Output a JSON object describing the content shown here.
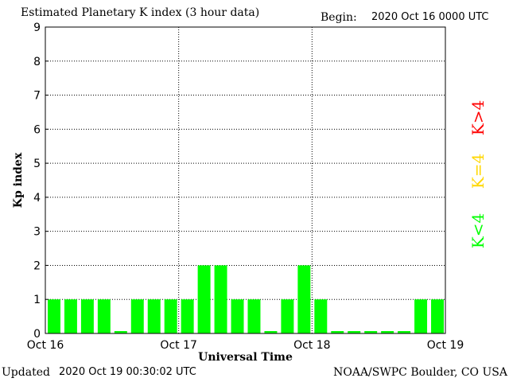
{
  "header": {
    "title": "Estimated Planetary K index (3 hour data)",
    "begin_label": "Begin:",
    "begin_value": "2020 Oct 16 0000 UTC"
  },
  "footer": {
    "updated_label": "Updated",
    "updated_value": "2020 Oct 19 00:30:02 UTC",
    "credit": "NOAA/SWPC Boulder, CO USA"
  },
  "colors": {
    "low": "#00ff00",
    "moderate": "#ffd700",
    "high": "#ff0000"
  },
  "legend": [
    {
      "label": "K<4",
      "color": "#00ff00"
    },
    {
      "label": "K=4",
      "color": "#ffd700"
    },
    {
      "label": "K>4",
      "color": "#ff0000"
    }
  ],
  "chart_data": {
    "type": "bar",
    "title": "Estimated Planetary K index (3 hour data)",
    "xlabel": "Universal Time",
    "ylabel": "Kp index",
    "ylim": [
      0,
      9
    ],
    "yticks": [
      0,
      1,
      2,
      3,
      4,
      5,
      6,
      7,
      8,
      9
    ],
    "xticks": [
      "Oct 16",
      "Oct 17",
      "Oct 18",
      "Oct 19"
    ],
    "grid": true,
    "categories": [
      "Oct 16 00",
      "Oct 16 03",
      "Oct 16 06",
      "Oct 16 09",
      "Oct 16 12",
      "Oct 16 15",
      "Oct 16 18",
      "Oct 16 21",
      "Oct 17 00",
      "Oct 17 03",
      "Oct 17 06",
      "Oct 17 09",
      "Oct 17 12",
      "Oct 17 15",
      "Oct 17 18",
      "Oct 17 21",
      "Oct 18 00",
      "Oct 18 03",
      "Oct 18 06",
      "Oct 18 09",
      "Oct 18 12",
      "Oct 18 15",
      "Oct 18 18",
      "Oct 18 21"
    ],
    "values": [
      1,
      1,
      1,
      1,
      0,
      1,
      1,
      1,
      1,
      2,
      2,
      1,
      1,
      0,
      1,
      2,
      1,
      0,
      0,
      0,
      0,
      0,
      1,
      1
    ]
  }
}
